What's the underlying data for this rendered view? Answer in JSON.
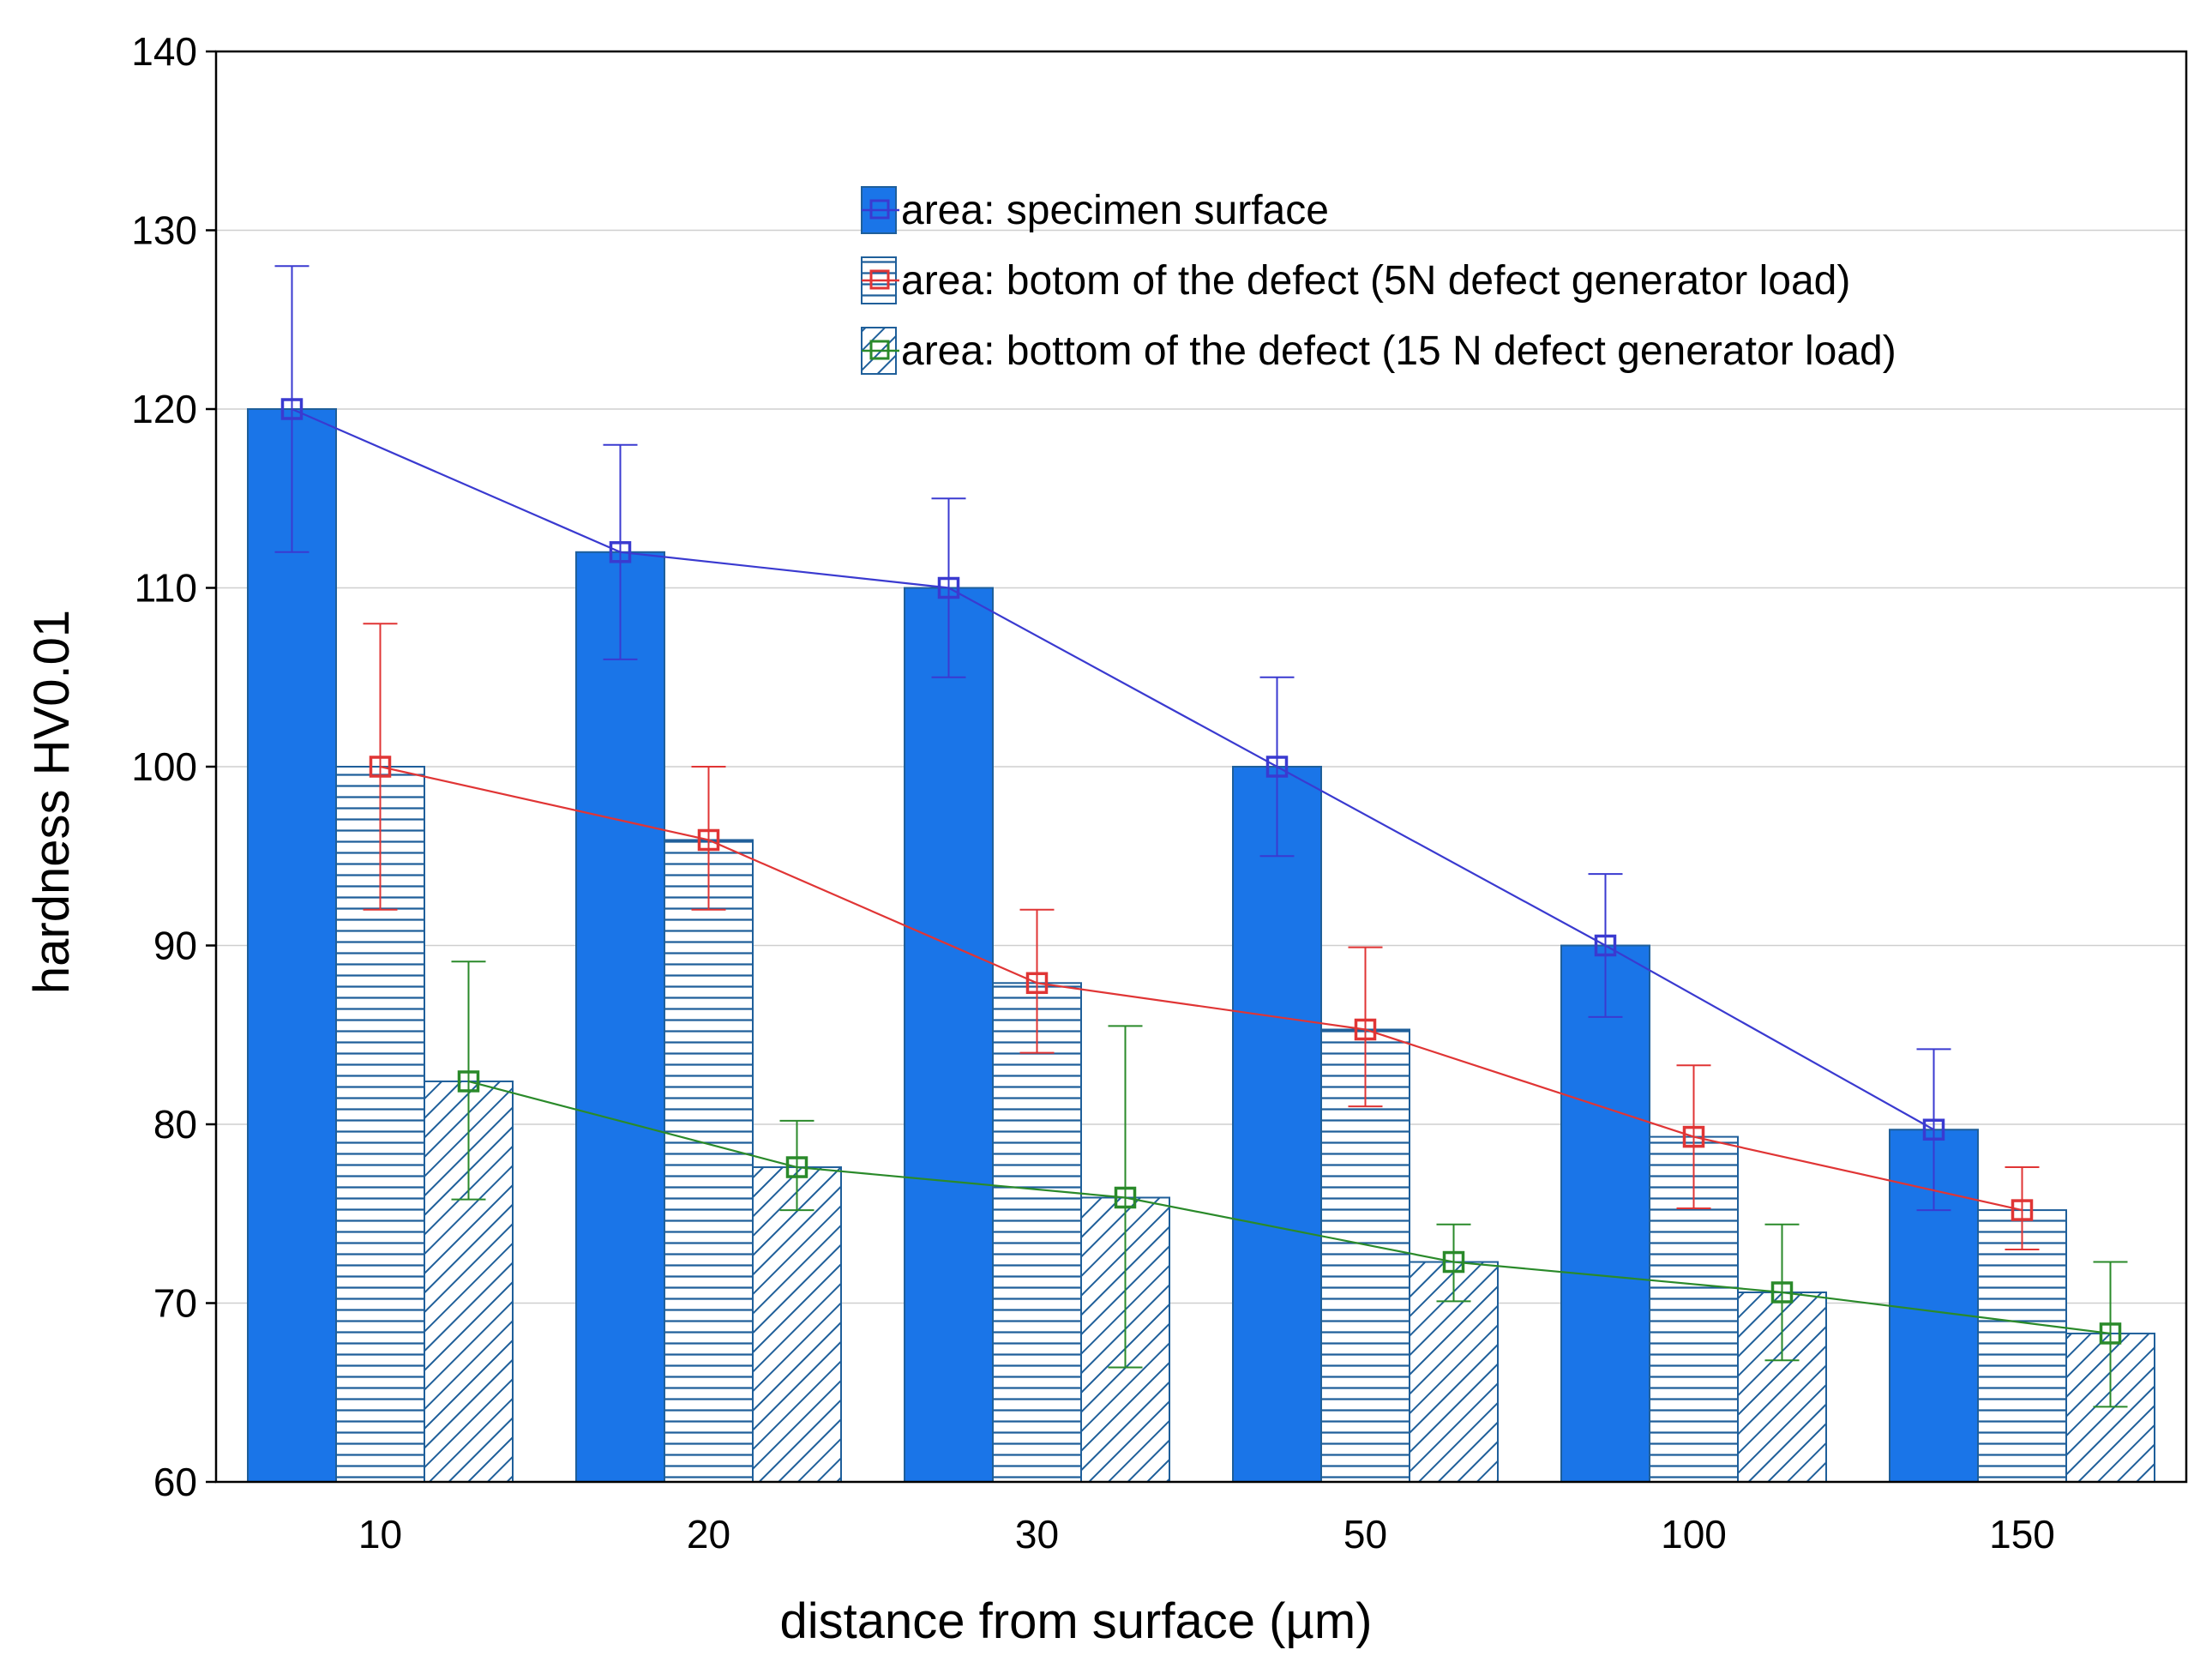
{
  "chart_data": {
    "type": "bar",
    "categories": [
      "10",
      "20",
      "30",
      "50",
      "100",
      "150"
    ],
    "xlabel": "distance from surface (µm)",
    "ylabel": "hardness HV0.01",
    "ylim": [
      60,
      140
    ],
    "yticks": [
      60,
      70,
      80,
      90,
      100,
      110,
      120,
      130,
      140
    ],
    "grid": true,
    "legend_position": "top-center",
    "series": [
      {
        "name": "area: specimen surface",
        "color": "#1a75e8",
        "line_color": "#3a3ad0",
        "pattern": "solid",
        "values": [
          120,
          112,
          110,
          100,
          90,
          79.7
        ],
        "error_low": [
          112,
          106,
          105,
          95,
          86,
          75.2
        ],
        "error_high": [
          128,
          118,
          115,
          105,
          94,
          84.2
        ]
      },
      {
        "name": "area: botom of the defect (5N defect generator load)",
        "color": "#1f5f9a",
        "line_color": "#e03535",
        "pattern": "horizontal-lines",
        "values": [
          100,
          95.9,
          87.9,
          85.3,
          79.3,
          75.2
        ],
        "error_low": [
          92,
          92,
          84,
          81,
          75.3,
          73
        ],
        "error_high": [
          108,
          100,
          92,
          89.9,
          83.3,
          77.6
        ]
      },
      {
        "name": "area: bottom of the defect (15 N defect generator load)",
        "color": "#1f5f9a",
        "line_color": "#2a8a2a",
        "pattern": "diagonal-lines",
        "values": [
          82.4,
          77.6,
          75.9,
          72.3,
          70.6,
          68.3
        ],
        "error_low": [
          75.8,
          75.2,
          66.4,
          70.1,
          66.8,
          64.2
        ],
        "error_high": [
          89.1,
          80.2,
          85.5,
          74.4,
          74.4,
          72.3
        ]
      }
    ]
  }
}
